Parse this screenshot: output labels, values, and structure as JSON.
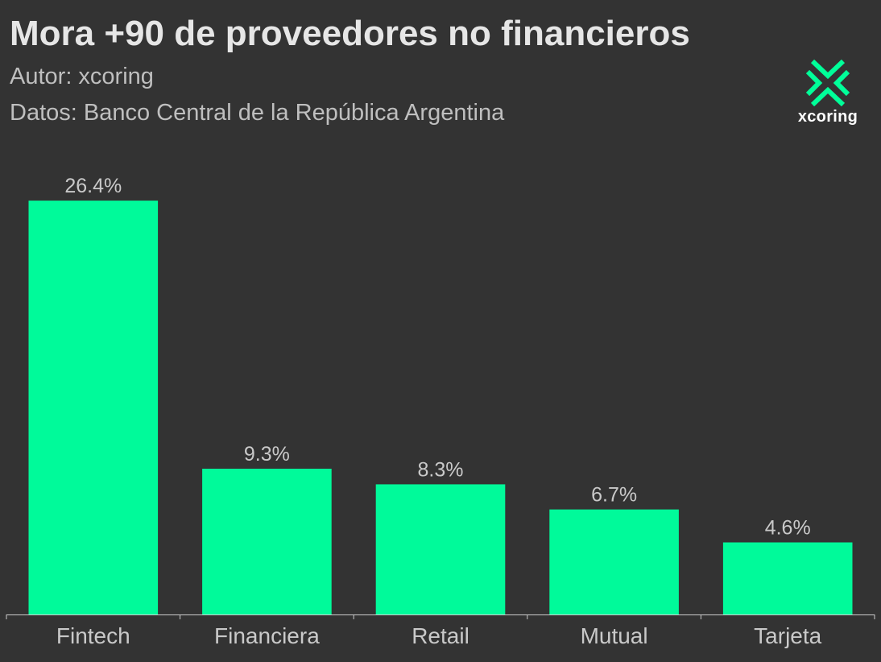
{
  "header": {
    "title": "Mora +90 de proveedores no financieros",
    "author": "Autor: xcoring",
    "source": "Datos: Banco Central de la República Argentina"
  },
  "logo": {
    "icon": "xcoring-x-logo-icon",
    "text": "xcoring",
    "color": "#00ff99"
  },
  "colors": {
    "background": "#333333",
    "bar": "#00fa9a",
    "text": "#c9c9c9",
    "axis": "#cccccc"
  },
  "chart_data": {
    "type": "bar",
    "title": "Mora +90 de proveedores no financieros",
    "categories": [
      "Fintech",
      "Financiera",
      "Retail",
      "Mutual",
      "Tarjeta"
    ],
    "values": [
      26.4,
      9.3,
      8.3,
      6.7,
      4.6
    ],
    "data_labels": [
      "26.4%",
      "9.3%",
      "8.3%",
      "6.7%",
      "4.6%"
    ],
    "ylim": [
      0,
      28
    ],
    "xlabel": "",
    "ylabel": "",
    "grid": false,
    "y_axis_visible": false
  }
}
